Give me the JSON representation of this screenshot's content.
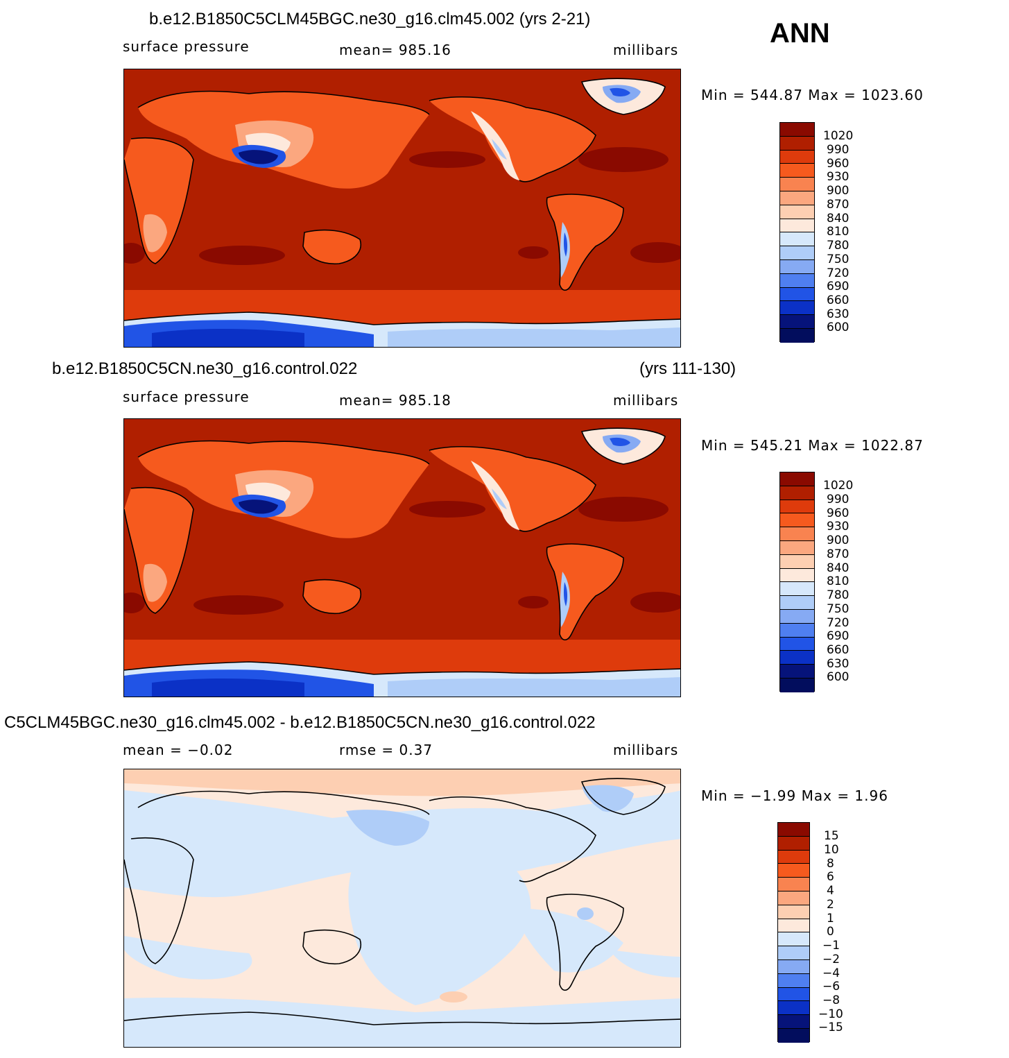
{
  "season": "ANN",
  "panels": [
    {
      "title": "b.e12.B1850C5CLM45BGC.ne30_g16.clm45.002 (yrs 2-21)",
      "title_right": "",
      "left_label": "surface  pressure",
      "center_label": "mean=  985.16",
      "units": "millibars",
      "minmax": "Min  =  544.87  Max  =  1023.60",
      "colorbar_labels": [
        "1020",
        "990",
        "960",
        "930",
        "900",
        "870",
        "840",
        "810",
        "780",
        "750",
        "720",
        "690",
        "660",
        "630",
        "600"
      ],
      "colorbar_colors": [
        "#8a0a00",
        "#b01f00",
        "#de3b0c",
        "#f65a1e",
        "#f98350",
        "#fba77f",
        "#fdcfb2",
        "#fde9dc",
        "#d6e8fb",
        "#afcdf8",
        "#86aaf3",
        "#4f7ff0",
        "#2154e6",
        "#0b31c6",
        "#06137a",
        "#020d5d"
      ]
    },
    {
      "title": "b.e12.B1850C5CN.ne30_g16.control.022",
      "title_right": "(yrs 111-130)",
      "left_label": "surface  pressure",
      "center_label": "mean=  985.18",
      "units": "millibars",
      "minmax": "Min  =  545.21  Max  =  1022.87",
      "colorbar_labels": [
        "1020",
        "990",
        "960",
        "930",
        "900",
        "870",
        "840",
        "810",
        "780",
        "750",
        "720",
        "690",
        "660",
        "630",
        "600"
      ],
      "colorbar_colors": [
        "#8a0a00",
        "#b01f00",
        "#de3b0c",
        "#f65a1e",
        "#f98350",
        "#fba77f",
        "#fdcfb2",
        "#fde9dc",
        "#d6e8fb",
        "#afcdf8",
        "#86aaf3",
        "#4f7ff0",
        "#2154e6",
        "#0b31c6",
        "#06137a",
        "#020d5d"
      ]
    },
    {
      "title": "C5CLM45BGC.ne30_g16.clm45.002 - b.e12.B1850C5CN.ne30_g16.control.022",
      "title_right": "",
      "left_label": "mean  =    −0.02",
      "center_label": "rmse  =     0.37",
      "units": "millibars",
      "minmax": "Min  =    −1.99  Max  =      1.96",
      "colorbar_labels": [
        "15",
        "10",
        "8",
        "6",
        "4",
        "2",
        "1",
        "0",
        "−1",
        "−2",
        "−4",
        "−6",
        "−8",
        "−10",
        "−15"
      ],
      "colorbar_colors": [
        "#8a0a00",
        "#b01f00",
        "#de3b0c",
        "#f65a1e",
        "#f98350",
        "#fba77f",
        "#fdcfb2",
        "#fde9dc",
        "#d6e8fb",
        "#afcdf8",
        "#86aaf3",
        "#4f7ff0",
        "#2154e6",
        "#0b31c6",
        "#06137a",
        "#020d5d"
      ]
    }
  ],
  "map_colors": {
    "ocean_base": "#b01f00",
    "subtropical_high": "#8a0a00",
    "southern_belt": "#de3b0c",
    "land_mid": "#f65a1e",
    "land_light": "#fba77f",
    "land_pale": "#fde9dc",
    "plateau_low": "#06137a",
    "plateau_mid": "#2154e6",
    "antarctic_low": "#0b31c6",
    "diff_positive": "#fde9dc",
    "diff_negative": "#d6e8fb",
    "diff_neg_strong": "#afcdf8",
    "diff_pos_strong": "#fdcfb2"
  }
}
